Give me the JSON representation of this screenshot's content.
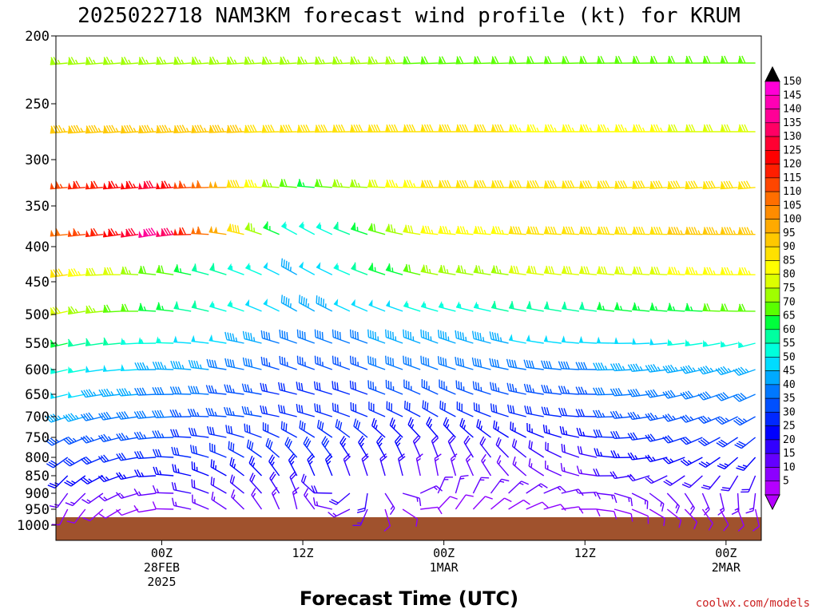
{
  "chart_data": {
    "type": "wind-barb-time-height",
    "title": "2025022718 NAM3KM forecast wind profile (kt) for KRUM",
    "xlabel": "Forecast Time (UTC)",
    "credit": "coolwx.com/models",
    "y_axis": {
      "quantity": "pressure (hPa)",
      "direction": "inverted",
      "range": [
        200,
        1000
      ],
      "ticks": [
        "200",
        "250",
        "300",
        "350",
        "400",
        "450",
        "500",
        "550",
        "600",
        "650",
        "700",
        "750",
        "800",
        "850",
        "900",
        "950",
        "1000"
      ]
    },
    "x_axis": {
      "range_hours_after_init": [
        -18,
        102
      ],
      "ticks": [
        {
          "hour": 0,
          "l1": "00Z",
          "l2": "28FEB",
          "l3": "2025"
        },
        {
          "hour": 24,
          "l1": "12Z",
          "l2": "",
          "l3": ""
        },
        {
          "hour": 48,
          "l1": "00Z",
          "l2": "1MAR",
          "l3": ""
        },
        {
          "hour": 72,
          "l1": "12Z",
          "l2": "",
          "l3": ""
        },
        {
          "hour": 96,
          "l1": "00Z",
          "l2": "2MAR",
          "l3": ""
        }
      ]
    },
    "colorbar": {
      "unit": "kt",
      "levels": [
        "150",
        "145",
        "140",
        "135",
        "130",
        "125",
        "120",
        "115",
        "110",
        "105",
        "100",
        "95",
        "90",
        "85",
        "80",
        "75",
        "70",
        "65",
        "60",
        "55",
        "50",
        "45",
        "40",
        "35",
        "30",
        "25",
        "20",
        "15",
        "10",
        "5"
      ],
      "colors": [
        "#ff00d7",
        "#ff00b4",
        "#ff0096",
        "#ff0064",
        "#ff0032",
        "#ff0000",
        "#ff1e00",
        "#ff4600",
        "#ff6e00",
        "#ff8c00",
        "#ffaa00",
        "#ffc800",
        "#ffe100",
        "#ffff00",
        "#dcff00",
        "#a0ff00",
        "#5aff00",
        "#00ff3c",
        "#00ffa0",
        "#00ffdc",
        "#00dcff",
        "#00aaff",
        "#0078ff",
        "#0050ff",
        "#0028ff",
        "#0000ff",
        "#3200ff",
        "#6400ff",
        "#8c00ff",
        "#b400ff"
      ]
    },
    "terrain_color": "#a0522d",
    "surface_pressure_hPa": 975,
    "levels_hPa": [
      220,
      275,
      330,
      385,
      440,
      495,
      550,
      600,
      650,
      700,
      750,
      800,
      850,
      900,
      950
    ],
    "wind_profile": [
      {
        "p": 220,
        "hours": [
          -18,
          102
        ],
        "dir_deg": [
          265,
          270
        ],
        "speed_kt": [
          75,
          70
        ]
      },
      {
        "p": 275,
        "hours": [
          -18,
          48,
          102
        ],
        "dir_deg": [
          265,
          270,
          270
        ],
        "speed_kt": [
          95,
          90,
          80
        ]
      },
      {
        "p": 330,
        "hours": [
          -18,
          0,
          24,
          48,
          102
        ],
        "dir_deg": [
          265,
          265,
          275,
          270,
          265
        ],
        "speed_kt": [
          115,
          130,
          65,
          90,
          90
        ]
      },
      {
        "p": 385,
        "hours": [
          -18,
          0,
          24,
          48,
          102
        ],
        "dir_deg": [
          265,
          260,
          300,
          275,
          270
        ],
        "speed_kt": [
          105,
          140,
          50,
          85,
          95
        ]
      },
      {
        "p": 440,
        "hours": [
          -18,
          24,
          48,
          102
        ],
        "dir_deg": [
          260,
          300,
          280,
          270
        ],
        "speed_kt": [
          90,
          45,
          75,
          85
        ]
      },
      {
        "p": 495,
        "hours": [
          -18,
          24,
          48,
          102
        ],
        "dir_deg": [
          255,
          300,
          285,
          270
        ],
        "speed_kt": [
          80,
          45,
          55,
          70
        ]
      },
      {
        "p": 550,
        "hours": [
          -18,
          24,
          48,
          102
        ],
        "dir_deg": [
          255,
          290,
          290,
          255
        ],
        "speed_kt": [
          65,
          40,
          45,
          55
        ]
      },
      {
        "p": 600,
        "hours": [
          -18,
          24,
          48,
          102
        ],
        "dir_deg": [
          255,
          290,
          290,
          250
        ],
        "speed_kt": [
          55,
          35,
          40,
          45
        ]
      },
      {
        "p": 650,
        "hours": [
          -18,
          24,
          48,
          102
        ],
        "dir_deg": [
          255,
          285,
          295,
          245
        ],
        "speed_kt": [
          50,
          30,
          35,
          40
        ]
      },
      {
        "p": 700,
        "hours": [
          -18,
          24,
          48,
          102
        ],
        "dir_deg": [
          250,
          285,
          300,
          240
        ],
        "speed_kt": [
          45,
          30,
          30,
          35
        ]
      },
      {
        "p": 750,
        "hours": [
          -18,
          24,
          48,
          102
        ],
        "dir_deg": [
          240,
          300,
          320,
          230
        ],
        "speed_kt": [
          35,
          30,
          25,
          30
        ]
      },
      {
        "p": 800,
        "hours": [
          -18,
          24,
          48,
          102
        ],
        "dir_deg": [
          230,
          320,
          340,
          220
        ],
        "speed_kt": [
          30,
          30,
          20,
          25
        ]
      },
      {
        "p": 850,
        "hours": [
          -18,
          24,
          48,
          102
        ],
        "dir_deg": [
          220,
          335,
          350,
          200
        ],
        "speed_kt": [
          25,
          25,
          15,
          20
        ]
      },
      {
        "p": 900,
        "hours": [
          -18,
          24,
          48,
          102
        ],
        "dir_deg": [
          210,
          340,
          10,
          190
        ],
        "speed_kt": [
          15,
          20,
          15,
          15
        ]
      },
      {
        "p": 950,
        "hours": [
          -18,
          24,
          48,
          102
        ],
        "dir_deg": [
          200,
          350,
          30,
          170
        ],
        "speed_kt": [
          10,
          15,
          10,
          10
        ]
      }
    ]
  }
}
